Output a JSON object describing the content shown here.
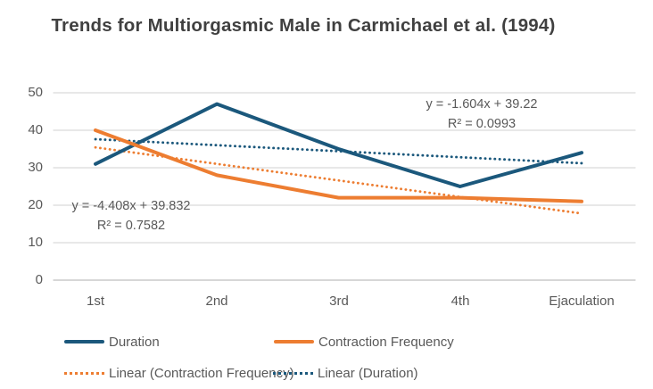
{
  "chart_data": {
    "type": "line",
    "title": "Trends for Multiorgasmic Male in Carmichael et al. (1994)",
    "categories": [
      "1st",
      "2nd",
      "3rd",
      "4th",
      "Ejaculation"
    ],
    "series": [
      {
        "name": "Duration",
        "values": [
          31,
          47,
          35,
          25,
          34
        ],
        "color": "#1B587C",
        "style": "solid"
      },
      {
        "name": "Contraction Frequency",
        "values": [
          40,
          28,
          22,
          22,
          21
        ],
        "color": "#ED7D31",
        "style": "solid"
      },
      {
        "name": "Linear (Duration)",
        "trend": {
          "slope": -1.604,
          "intercept": 39.22
        },
        "equation": "y = -1.604x + 39.22",
        "r_squared": "R² = 0.0993",
        "color": "#1B587C",
        "style": "dotted"
      },
      {
        "name": "Linear (Contraction Frequency)",
        "trend": {
          "slope": -4.408,
          "intercept": 39.832
        },
        "equation": "y = -4.408x + 39.832",
        "r_squared": "R² = 0.7582",
        "color": "#ED7D31",
        "style": "dotted"
      }
    ],
    "xlabel": "",
    "ylabel": "",
    "ylim": [
      0,
      50
    ],
    "yticks": [
      0,
      10,
      20,
      30,
      40,
      50
    ],
    "grid": true,
    "legend_position": "bottom"
  },
  "colors": {
    "duration": "#1B587C",
    "contraction": "#ED7D31",
    "gridline": "#D9D9D9",
    "axis_line": "#BFBFBF",
    "label_gray": "#595959",
    "title_gray": "#404040"
  }
}
